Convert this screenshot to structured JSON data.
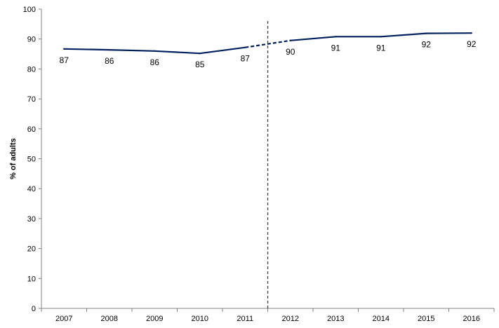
{
  "chart_data": {
    "type": "line",
    "title": "",
    "xlabel": "",
    "ylabel": "% of adults",
    "ylim": [
      0,
      100
    ],
    "yticks": [
      0,
      10,
      20,
      30,
      40,
      50,
      60,
      70,
      80,
      90,
      100
    ],
    "categories": [
      "2007",
      "2008",
      "2009",
      "2010",
      "2011",
      "2012",
      "2013",
      "2014",
      "2015",
      "2016"
    ],
    "series": [
      {
        "values": [
          86.7,
          86.4,
          86.0,
          85.2,
          87.2,
          89.5,
          90.8,
          90.8,
          91.9,
          92.0
        ],
        "labels": [
          "87",
          "86",
          "86",
          "85",
          "87",
          "90",
          "91",
          "91",
          "92",
          "92"
        ]
      }
    ],
    "break_after_category": "2011",
    "dashed_segment": [
      "2011",
      "2012"
    ],
    "series_color": "#002060",
    "grid": false,
    "legend": "none"
  }
}
